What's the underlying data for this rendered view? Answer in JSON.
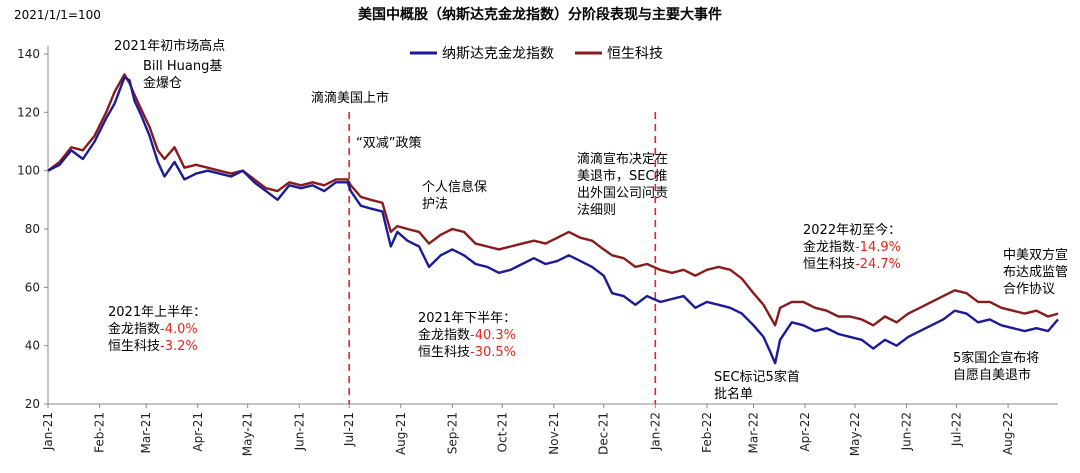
{
  "chart_data": {
    "type": "line",
    "title": "美国中概股（纳斯达克金龙指数）分阶段表现与主要大事件",
    "base_note": "2021/1/1=100",
    "ylim": [
      20,
      140
    ],
    "y_ticks": [
      20,
      40,
      60,
      80,
      100,
      120,
      140
    ],
    "x_range": [
      "2021-01-01",
      "2022-08-31"
    ],
    "x_ticks": [
      {
        "date": "2021-01-01",
        "label": "Jan-21"
      },
      {
        "date": "2021-02-01",
        "label": "Feb-21"
      },
      {
        "date": "2021-03-01",
        "label": "Mar-21"
      },
      {
        "date": "2021-04-01",
        "label": "Apr-21"
      },
      {
        "date": "2021-05-01",
        "label": "May-21"
      },
      {
        "date": "2021-06-01",
        "label": "Jun-21"
      },
      {
        "date": "2021-07-01",
        "label": "Jul-21"
      },
      {
        "date": "2021-08-01",
        "label": "Aug-21"
      },
      {
        "date": "2021-09-01",
        "label": "Sep-21"
      },
      {
        "date": "2021-10-01",
        "label": "Oct-21"
      },
      {
        "date": "2021-11-01",
        "label": "Nov-21"
      },
      {
        "date": "2021-12-01",
        "label": "Dec-21"
      },
      {
        "date": "2022-01-01",
        "label": "Jan-22"
      },
      {
        "date": "2022-02-01",
        "label": "Feb-22"
      },
      {
        "date": "2022-03-01",
        "label": "Mar-22"
      },
      {
        "date": "2022-04-01",
        "label": "Apr-22"
      },
      {
        "date": "2022-05-01",
        "label": "May-22"
      },
      {
        "date": "2022-06-01",
        "label": "Jun-22"
      },
      {
        "date": "2022-07-01",
        "label": "Jul-22"
      },
      {
        "date": "2022-08-01",
        "label": "Aug-22"
      }
    ],
    "series": [
      {
        "name": "纳斯达克金龙指数",
        "color": "#1a1a9c",
        "points": [
          [
            "2021-01-01",
            100
          ],
          [
            "2021-01-08",
            102
          ],
          [
            "2021-01-15",
            107
          ],
          [
            "2021-01-22",
            104
          ],
          [
            "2021-01-29",
            110
          ],
          [
            "2021-02-05",
            118
          ],
          [
            "2021-02-10",
            123
          ],
          [
            "2021-02-16",
            132
          ],
          [
            "2021-02-19",
            131
          ],
          [
            "2021-02-22",
            124
          ],
          [
            "2021-02-26",
            119
          ],
          [
            "2021-03-03",
            112
          ],
          [
            "2021-03-08",
            103
          ],
          [
            "2021-03-12",
            98
          ],
          [
            "2021-03-18",
            103
          ],
          [
            "2021-03-24",
            97
          ],
          [
            "2021-03-31",
            99
          ],
          [
            "2021-04-07",
            100
          ],
          [
            "2021-04-14",
            99
          ],
          [
            "2021-04-21",
            98
          ],
          [
            "2021-04-28",
            100
          ],
          [
            "2021-05-05",
            96
          ],
          [
            "2021-05-12",
            93
          ],
          [
            "2021-05-19",
            90
          ],
          [
            "2021-05-26",
            95
          ],
          [
            "2021-06-02",
            94
          ],
          [
            "2021-06-09",
            95
          ],
          [
            "2021-06-16",
            93
          ],
          [
            "2021-06-23",
            96
          ],
          [
            "2021-06-30",
            96
          ],
          [
            "2021-07-02",
            93
          ],
          [
            "2021-07-08",
            88
          ],
          [
            "2021-07-14",
            87
          ],
          [
            "2021-07-21",
            86
          ],
          [
            "2021-07-26",
            74
          ],
          [
            "2021-07-30",
            79
          ],
          [
            "2021-08-05",
            76
          ],
          [
            "2021-08-12",
            74
          ],
          [
            "2021-08-18",
            67
          ],
          [
            "2021-08-25",
            71
          ],
          [
            "2021-09-01",
            73
          ],
          [
            "2021-09-08",
            71
          ],
          [
            "2021-09-15",
            68
          ],
          [
            "2021-09-22",
            67
          ],
          [
            "2021-09-29",
            65
          ],
          [
            "2021-10-06",
            66
          ],
          [
            "2021-10-13",
            68
          ],
          [
            "2021-10-20",
            70
          ],
          [
            "2021-10-27",
            68
          ],
          [
            "2021-11-03",
            69
          ],
          [
            "2021-11-10",
            71
          ],
          [
            "2021-11-17",
            69
          ],
          [
            "2021-11-24",
            67
          ],
          [
            "2021-12-01",
            64
          ],
          [
            "2021-12-06",
            58
          ],
          [
            "2021-12-13",
            57
          ],
          [
            "2021-12-20",
            54
          ],
          [
            "2021-12-27",
            57
          ],
          [
            "2022-01-04",
            55
          ],
          [
            "2022-01-11",
            56
          ],
          [
            "2022-01-18",
            57
          ],
          [
            "2022-01-25",
            53
          ],
          [
            "2022-02-01",
            55
          ],
          [
            "2022-02-08",
            54
          ],
          [
            "2022-02-15",
            53
          ],
          [
            "2022-02-22",
            51
          ],
          [
            "2022-03-01",
            47
          ],
          [
            "2022-03-07",
            43
          ],
          [
            "2022-03-11",
            38
          ],
          [
            "2022-03-14",
            34
          ],
          [
            "2022-03-17",
            42
          ],
          [
            "2022-03-24",
            48
          ],
          [
            "2022-03-31",
            47
          ],
          [
            "2022-04-07",
            45
          ],
          [
            "2022-04-14",
            46
          ],
          [
            "2022-04-21",
            44
          ],
          [
            "2022-04-28",
            43
          ],
          [
            "2022-05-05",
            42
          ],
          [
            "2022-05-12",
            39
          ],
          [
            "2022-05-19",
            42
          ],
          [
            "2022-05-26",
            40
          ],
          [
            "2022-06-02",
            43
          ],
          [
            "2022-06-09",
            45
          ],
          [
            "2022-06-16",
            47
          ],
          [
            "2022-06-23",
            49
          ],
          [
            "2022-06-30",
            52
          ],
          [
            "2022-07-07",
            51
          ],
          [
            "2022-07-14",
            48
          ],
          [
            "2022-07-21",
            49
          ],
          [
            "2022-07-28",
            47
          ],
          [
            "2022-08-04",
            46
          ],
          [
            "2022-08-11",
            45
          ],
          [
            "2022-08-18",
            46
          ],
          [
            "2022-08-25",
            45
          ],
          [
            "2022-08-31",
            49
          ]
        ]
      },
      {
        "name": "恒生科技",
        "color": "#8b1a1a",
        "points": [
          [
            "2021-01-01",
            100
          ],
          [
            "2021-01-08",
            103
          ],
          [
            "2021-01-15",
            108
          ],
          [
            "2021-01-22",
            107
          ],
          [
            "2021-01-29",
            112
          ],
          [
            "2021-02-05",
            120
          ],
          [
            "2021-02-10",
            127
          ],
          [
            "2021-02-16",
            133
          ],
          [
            "2021-02-19",
            130
          ],
          [
            "2021-02-22",
            126
          ],
          [
            "2021-02-26",
            121
          ],
          [
            "2021-03-03",
            115
          ],
          [
            "2021-03-08",
            107
          ],
          [
            "2021-03-12",
            104
          ],
          [
            "2021-03-18",
            108
          ],
          [
            "2021-03-24",
            101
          ],
          [
            "2021-03-31",
            102
          ],
          [
            "2021-04-07",
            101
          ],
          [
            "2021-04-14",
            100
          ],
          [
            "2021-04-21",
            99
          ],
          [
            "2021-04-28",
            100
          ],
          [
            "2021-05-05",
            97
          ],
          [
            "2021-05-12",
            94
          ],
          [
            "2021-05-19",
            93
          ],
          [
            "2021-05-26",
            96
          ],
          [
            "2021-06-02",
            95
          ],
          [
            "2021-06-09",
            96
          ],
          [
            "2021-06-16",
            95
          ],
          [
            "2021-06-23",
            97
          ],
          [
            "2021-06-30",
            97
          ],
          [
            "2021-07-02",
            95
          ],
          [
            "2021-07-08",
            91
          ],
          [
            "2021-07-14",
            90
          ],
          [
            "2021-07-21",
            89
          ],
          [
            "2021-07-26",
            79
          ],
          [
            "2021-07-30",
            81
          ],
          [
            "2021-08-05",
            80
          ],
          [
            "2021-08-12",
            79
          ],
          [
            "2021-08-18",
            75
          ],
          [
            "2021-08-25",
            78
          ],
          [
            "2021-09-01",
            80
          ],
          [
            "2021-09-08",
            79
          ],
          [
            "2021-09-15",
            75
          ],
          [
            "2021-09-22",
            74
          ],
          [
            "2021-09-29",
            73
          ],
          [
            "2021-10-06",
            74
          ],
          [
            "2021-10-13",
            75
          ],
          [
            "2021-10-20",
            76
          ],
          [
            "2021-10-27",
            75
          ],
          [
            "2021-11-03",
            77
          ],
          [
            "2021-11-10",
            79
          ],
          [
            "2021-11-17",
            77
          ],
          [
            "2021-11-24",
            76
          ],
          [
            "2021-12-01",
            73
          ],
          [
            "2021-12-06",
            71
          ],
          [
            "2021-12-13",
            70
          ],
          [
            "2021-12-20",
            67
          ],
          [
            "2021-12-27",
            68
          ],
          [
            "2022-01-04",
            66
          ],
          [
            "2022-01-11",
            65
          ],
          [
            "2022-01-18",
            66
          ],
          [
            "2022-01-25",
            64
          ],
          [
            "2022-02-01",
            66
          ],
          [
            "2022-02-08",
            67
          ],
          [
            "2022-02-15",
            66
          ],
          [
            "2022-02-22",
            63
          ],
          [
            "2022-03-01",
            58
          ],
          [
            "2022-03-07",
            54
          ],
          [
            "2022-03-11",
            50
          ],
          [
            "2022-03-14",
            47
          ],
          [
            "2022-03-17",
            53
          ],
          [
            "2022-03-24",
            55
          ],
          [
            "2022-03-31",
            55
          ],
          [
            "2022-04-07",
            53
          ],
          [
            "2022-04-14",
            52
          ],
          [
            "2022-04-21",
            50
          ],
          [
            "2022-04-28",
            50
          ],
          [
            "2022-05-05",
            49
          ],
          [
            "2022-05-12",
            47
          ],
          [
            "2022-05-19",
            50
          ],
          [
            "2022-05-26",
            48
          ],
          [
            "2022-06-02",
            51
          ],
          [
            "2022-06-09",
            53
          ],
          [
            "2022-06-16",
            55
          ],
          [
            "2022-06-23",
            57
          ],
          [
            "2022-06-30",
            59
          ],
          [
            "2022-07-07",
            58
          ],
          [
            "2022-07-14",
            55
          ],
          [
            "2022-07-21",
            55
          ],
          [
            "2022-07-28",
            53
          ],
          [
            "2022-08-04",
            52
          ],
          [
            "2022-08-11",
            51
          ],
          [
            "2022-08-18",
            52
          ],
          [
            "2022-08-25",
            50
          ],
          [
            "2022-08-31",
            51
          ]
        ]
      }
    ],
    "vlines": [
      {
        "date": "2021-07-01",
        "color": "#e8231c"
      },
      {
        "date": "2022-01-01",
        "color": "#e8231c"
      }
    ],
    "annotations": [
      {
        "id": "peak",
        "lines": [
          "2021年初市场高点"
        ]
      },
      {
        "id": "huang",
        "lines": [
          "Bill Huang基",
          "金爆仓"
        ]
      },
      {
        "id": "didi-ipo",
        "lines": [
          "滴滴美国上市"
        ]
      },
      {
        "id": "double-reduction",
        "lines": [
          "“双减”政策"
        ]
      },
      {
        "id": "privacy",
        "lines": [
          "个人信息保",
          "护法"
        ]
      },
      {
        "id": "didi-delist",
        "lines": [
          "滴滴宣布决定在",
          "美退市，SEC推",
          "出外国公司问责",
          "法细则"
        ]
      },
      {
        "id": "sec-list",
        "lines": [
          "SEC标记5家首",
          "批名单"
        ]
      },
      {
        "id": "soe-delist",
        "lines": [
          "5家国企宣布将",
          "自愿自美退市"
        ]
      },
      {
        "id": "audit-deal",
        "lines": [
          "中美双方宣",
          "布达成监管",
          "合作协议"
        ]
      }
    ],
    "stats": [
      {
        "id": "h1",
        "heading": "2021年上半年：",
        "rows": [
          {
            "label": "金龙指数",
            "value": "-4.0%"
          },
          {
            "label": "恒生科技",
            "value": "-3.2%"
          }
        ]
      },
      {
        "id": "h2",
        "heading": "2021年下半年：",
        "rows": [
          {
            "label": "金龙指数",
            "value": "-40.3%"
          },
          {
            "label": "恒生科技",
            "value": "-30.5%"
          }
        ]
      },
      {
        "id": "ytd",
        "heading": "2022年初至今：",
        "rows": [
          {
            "label": "金龙指数",
            "value": "-14.9%"
          },
          {
            "label": "恒生科技",
            "value": "-24.7%"
          }
        ]
      }
    ]
  }
}
